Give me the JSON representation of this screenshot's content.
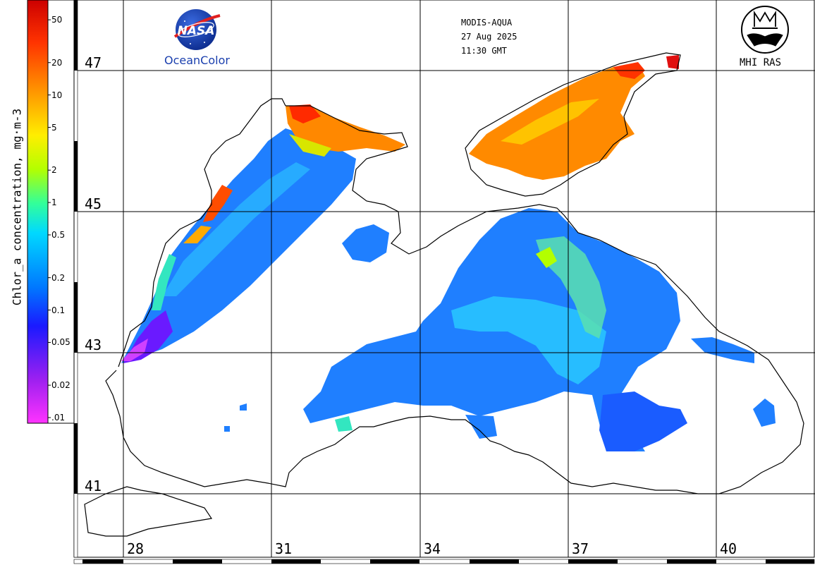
{
  "colorbar": {
    "title": "Chlor_a concentration, mg·m-3",
    "ticks": [
      {
        "label": "50",
        "value": 50
      },
      {
        "label": "20",
        "value": 20
      },
      {
        "label": "10",
        "value": 10
      },
      {
        "label": "5",
        "value": 5
      },
      {
        "label": "2",
        "value": 2
      },
      {
        "label": "1",
        "value": 1
      },
      {
        "label": "0.5",
        "value": 0.5
      },
      {
        "label": "0.2",
        "value": 0.2
      },
      {
        "label": "0.1",
        "value": 0.1
      },
      {
        "label": "0.05",
        "value": 0.05
      },
      {
        "label": "0.02",
        "value": 0.02
      },
      {
        "label": ".01",
        "value": 0.01
      }
    ],
    "min": 0.01,
    "max": 60,
    "scale": "log",
    "colors": [
      "#ff33ff",
      "#a020f0",
      "#1a1aff",
      "#0077ff",
      "#00d9ff",
      "#33ff99",
      "#b3ff00",
      "#ffee00",
      "#ff9900",
      "#ff3300",
      "#cc0000"
    ]
  },
  "info": {
    "sensor": "MODIS-AQUA",
    "date": "27 Aug 2025",
    "time": "11:30 GMT"
  },
  "logos": {
    "nasa_text": "NASA",
    "oceancolor": "OceanColor",
    "mhi": "MHI RAS"
  },
  "grid": {
    "latitudes": [
      "47",
      "45",
      "43",
      "41"
    ],
    "longitudes": [
      "28",
      "31",
      "34",
      "37",
      "40"
    ]
  },
  "colors": {
    "land": "#ffffff",
    "coast": "#000000",
    "nasa_blue": "#1a3fae",
    "nasa_red": "#e02020"
  }
}
